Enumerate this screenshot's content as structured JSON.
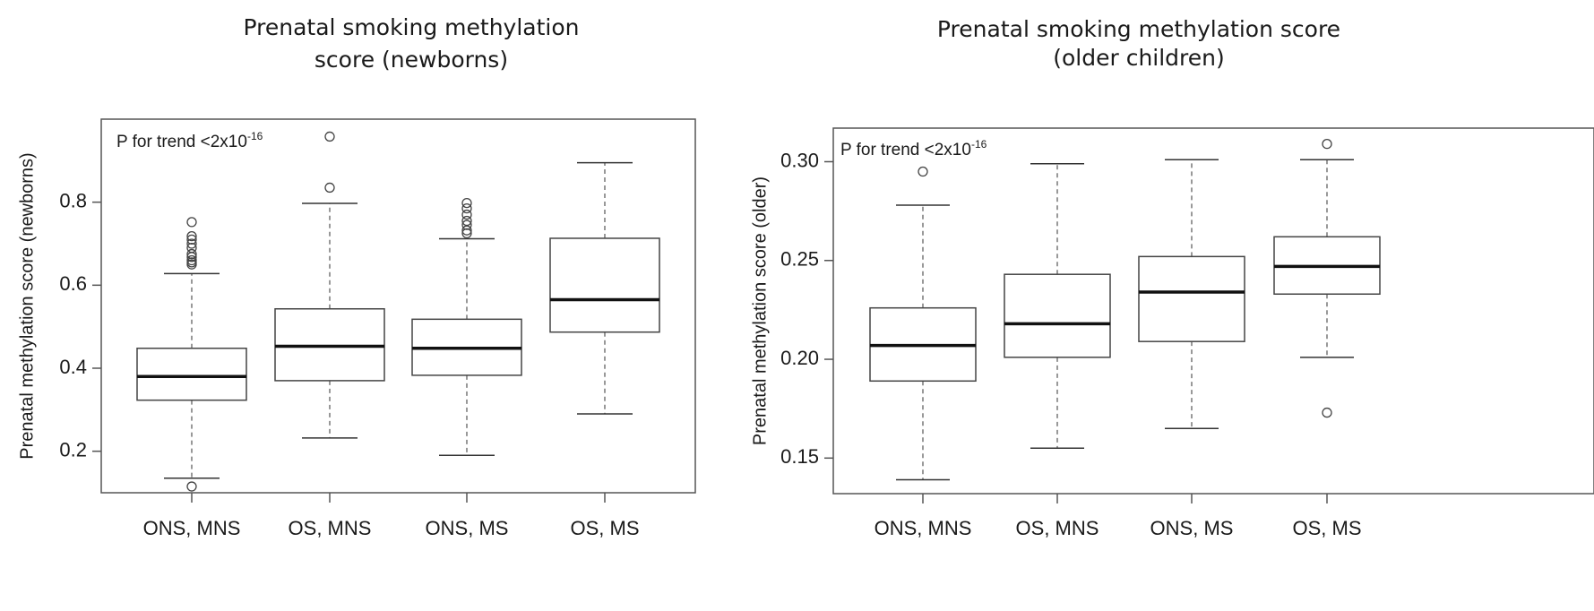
{
  "chart_data": [
    {
      "type": "box",
      "title_lines": [
        "Prenatal smoking methylation",
        "score (newborns)"
      ],
      "ylabel": "Prenatal methylation score (newborns)",
      "annotation": {
        "text": "P for trend <2x10",
        "sup": "-16"
      },
      "ylim": [
        0.1,
        1.0
      ],
      "yticks": [
        0.2,
        0.4,
        0.6,
        0.8
      ],
      "ytick_labels": [
        "0.2",
        "0.4",
        "0.6",
        "0.8"
      ],
      "categories": [
        "ONS, MNS",
        "OS, MNS",
        "ONS, MS",
        "OS, MS"
      ],
      "boxes": [
        {
          "whisker_low": 0.135,
          "q1": 0.323,
          "median": 0.38,
          "q3": 0.448,
          "whisker_high": 0.628,
          "outliers": [
            0.115,
            0.65,
            0.655,
            0.66,
            0.668,
            0.675,
            0.69,
            0.7,
            0.71,
            0.718,
            0.752
          ]
        },
        {
          "whisker_low": 0.232,
          "q1": 0.37,
          "median": 0.453,
          "q3": 0.543,
          "whisker_high": 0.797,
          "outliers": [
            0.835,
            0.958
          ]
        },
        {
          "whisker_low": 0.19,
          "q1": 0.383,
          "median": 0.448,
          "q3": 0.518,
          "whisker_high": 0.712,
          "outliers": [
            0.725,
            0.732,
            0.745,
            0.755,
            0.77,
            0.785,
            0.798
          ]
        },
        {
          "whisker_low": 0.29,
          "q1": 0.487,
          "median": 0.565,
          "q3": 0.713,
          "whisker_high": 0.895,
          "outliers": []
        }
      ]
    },
    {
      "type": "box",
      "title_lines": [
        "Prenatal smoking methylation score",
        "(older children)"
      ],
      "ylabel": "Prenatal methylation score (older)",
      "annotation": {
        "text": "P for trend <2x10",
        "sup": "-16"
      },
      "ylim": [
        0.132,
        0.317
      ],
      "yticks": [
        0.15,
        0.2,
        0.25,
        0.3
      ],
      "ytick_labels": [
        "0.15",
        "0.20",
        "0.25",
        "0.30"
      ],
      "categories": [
        "ONS, MNS",
        "OS, MNS",
        "ONS, MS",
        "OS, MS"
      ],
      "boxes": [
        {
          "whisker_low": 0.139,
          "q1": 0.189,
          "median": 0.207,
          "q3": 0.226,
          "whisker_high": 0.278,
          "outliers": [
            0.295
          ]
        },
        {
          "whisker_low": 0.155,
          "q1": 0.201,
          "median": 0.218,
          "q3": 0.243,
          "whisker_high": 0.299,
          "outliers": []
        },
        {
          "whisker_low": 0.165,
          "q1": 0.209,
          "median": 0.234,
          "q3": 0.252,
          "whisker_high": 0.301,
          "outliers": []
        },
        {
          "whisker_low": 0.201,
          "q1": 0.233,
          "median": 0.247,
          "q3": 0.262,
          "whisker_high": 0.301,
          "outliers": [
            0.173,
            0.309
          ]
        }
      ]
    }
  ]
}
